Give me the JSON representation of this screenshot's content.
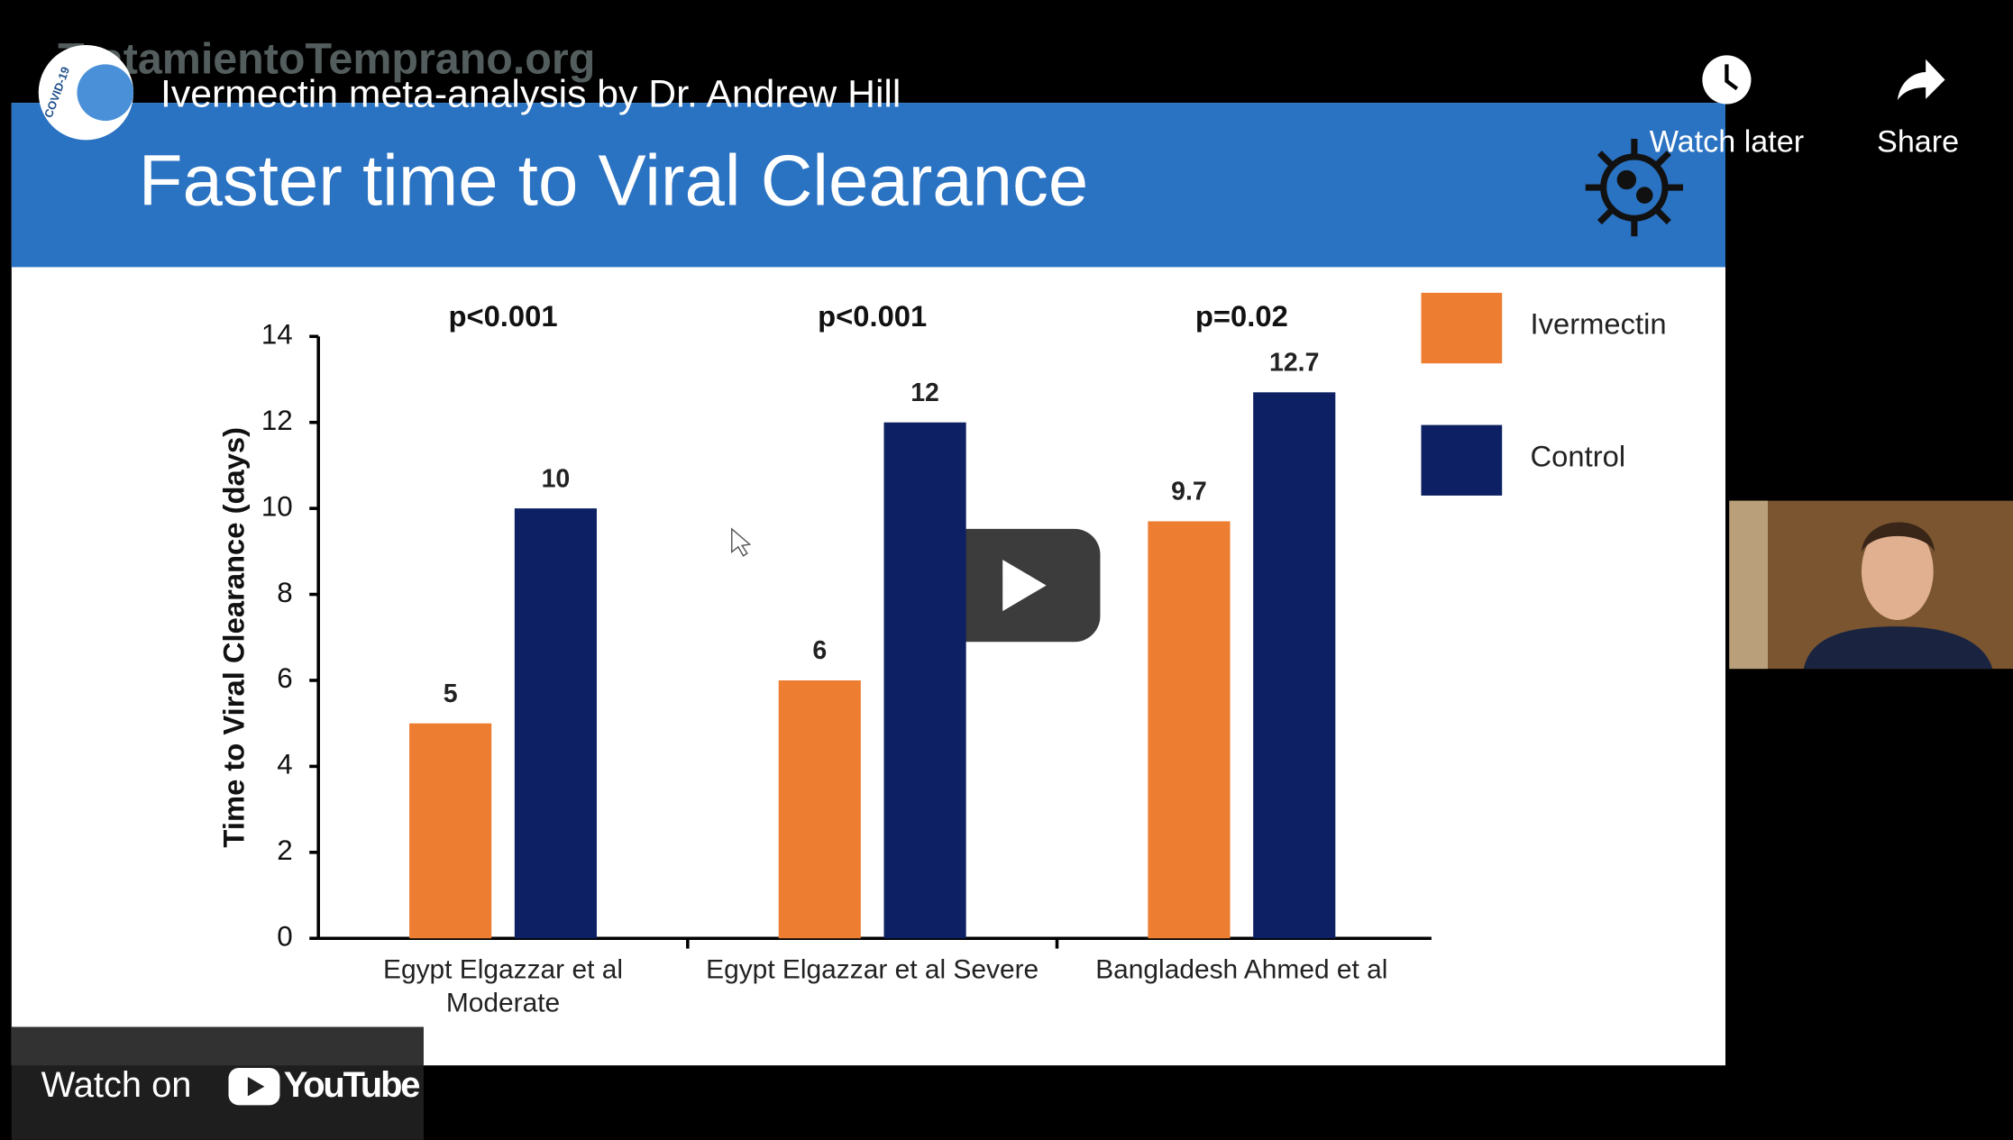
{
  "video": {
    "title": "Ivermectin meta-analysis by Dr. Andrew Hill",
    "watermark": "TratamientoTemprano.org",
    "logo_text": "COVID-19",
    "watch_later": "Watch later",
    "share": "Share",
    "watch_on": "Watch on",
    "youtube": "YouTube"
  },
  "slide": {
    "title": "Faster time to Viral Clearance"
  },
  "chart_data": {
    "type": "bar",
    "y_label": "Time to Viral Clearance (days)",
    "categories": [
      "Egypt Elgazzar et al Moderate",
      "Egypt Elgazzar et al Severe",
      "Bangladesh Ahmed et al"
    ],
    "annotations": [
      "p<0.001",
      "p<0.001",
      "p=0.02"
    ],
    "series": [
      {
        "name": "Ivermectin",
        "color": "#ed7d31",
        "values": [
          5,
          6,
          9.7
        ]
      },
      {
        "name": "Control",
        "color": "#0c2063",
        "values": [
          10,
          12,
          12.7
        ]
      }
    ],
    "ylim": [
      0,
      14
    ],
    "yticks": [
      0,
      2,
      4,
      6,
      8,
      10,
      12,
      14
    ],
    "grid": false,
    "legend": "right"
  }
}
